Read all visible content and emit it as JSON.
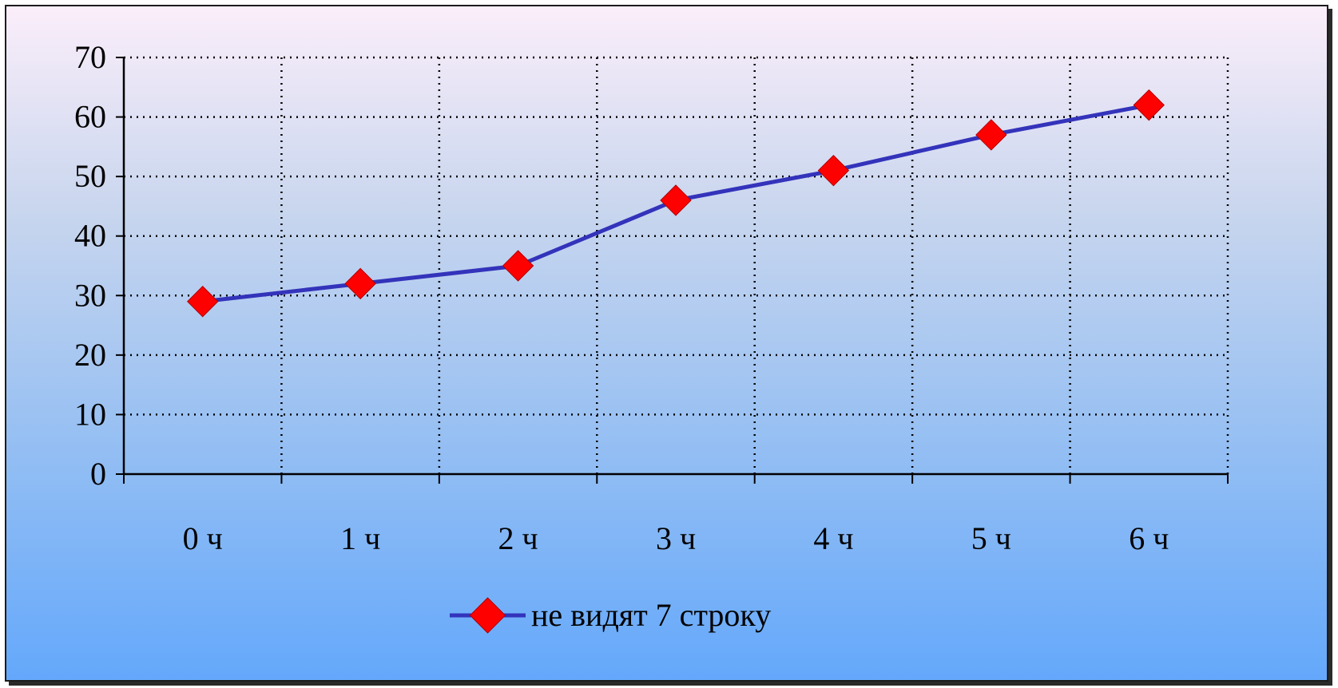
{
  "chart_data": {
    "type": "line",
    "categories": [
      "0 ч",
      "1 ч",
      "2 ч",
      "3 ч",
      "4 ч",
      "5 ч",
      "6 ч"
    ],
    "series": [
      {
        "name": "не видят 7 строку",
        "values": [
          29,
          32,
          35,
          46,
          51,
          57,
          62
        ],
        "line_color": "#3333bb",
        "marker_color": "#ff0000",
        "marker": "diamond"
      }
    ],
    "ylim": [
      0,
      70
    ],
    "yticks": [
      "0",
      "10",
      "20",
      "30",
      "40",
      "50",
      "60",
      "70"
    ],
    "grid": true,
    "legend_position": "bottom"
  }
}
